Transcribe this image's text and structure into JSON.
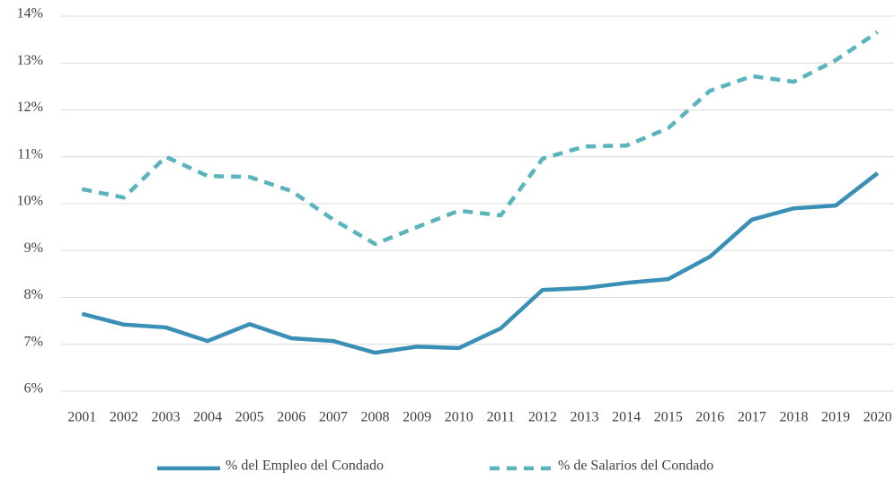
{
  "chart_data": {
    "type": "line",
    "categories": [
      "2001",
      "2002",
      "2003",
      "2004",
      "2005",
      "2006",
      "2007",
      "2008",
      "2009",
      "2010",
      "2011",
      "2012",
      "2013",
      "2014",
      "2015",
      "2016",
      "2017",
      "2018",
      "2019",
      "2020"
    ],
    "series": [
      {
        "name": "% del Empleo del Condado",
        "color": "#3a8fb7",
        "dash": false,
        "values": [
          7.65,
          7.42,
          7.36,
          7.07,
          7.43,
          7.13,
          7.07,
          6.82,
          6.95,
          6.92,
          7.34,
          8.16,
          8.2,
          8.31,
          8.39,
          8.87,
          9.66,
          9.9,
          9.96,
          10.65
        ]
      },
      {
        "name": "% de Salarios del Condado",
        "color": "#5ab4bd",
        "dash": true,
        "values": [
          10.31,
          10.13,
          11.0,
          10.59,
          10.57,
          10.27,
          9.66,
          9.14,
          9.5,
          9.85,
          9.75,
          10.96,
          11.22,
          11.24,
          11.61,
          12.41,
          12.72,
          12.6,
          13.06,
          13.66
        ]
      }
    ],
    "ylim": [
      6,
      14
    ],
    "yticks": [
      {
        "value": 6,
        "label": "6%"
      },
      {
        "value": 7,
        "label": "7%"
      },
      {
        "value": 8,
        "label": "8%"
      },
      {
        "value": 9,
        "label": "9%"
      },
      {
        "value": 10,
        "label": "10%"
      },
      {
        "value": 11,
        "label": "11%"
      },
      {
        "value": 12,
        "label": "12%"
      },
      {
        "value": 13,
        "label": "13%"
      },
      {
        "value": 14,
        "label": "14%"
      }
    ],
    "grid": true,
    "legend": "bottom"
  }
}
